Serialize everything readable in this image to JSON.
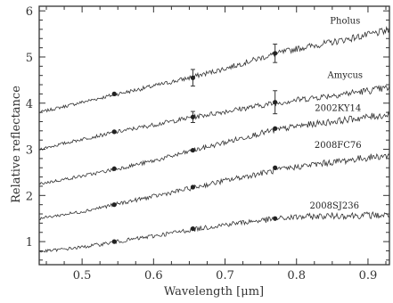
{
  "chart_data": {
    "type": "line",
    "xlabel": "Wavelength [μm]",
    "ylabel": "Relative reflectance",
    "xlim": [
      0.44,
      0.93
    ],
    "ylim": [
      0.5,
      6.1
    ],
    "xticks": [
      "0.5",
      "0.6",
      "0.7",
      "0.8",
      "0.9"
    ],
    "yticks": [
      "1",
      "2",
      "3",
      "4",
      "5",
      "6"
    ],
    "grid": false,
    "legend": "none",
    "series": [
      {
        "name": "Pholus",
        "x": [
          0.44,
          0.5,
          0.55,
          0.6,
          0.65,
          0.7,
          0.75,
          0.8,
          0.85,
          0.9,
          0.93
        ],
        "values": [
          3.8,
          4.02,
          4.2,
          4.37,
          4.55,
          4.75,
          4.98,
          5.18,
          5.32,
          5.48,
          5.58
        ],
        "photometry": {
          "x": [
            0.545,
            0.655,
            0.77
          ],
          "values": [
            4.2,
            4.55,
            5.08
          ],
          "errors": [
            0,
            0.18,
            0.2
          ]
        }
      },
      {
        "name": "Amycus",
        "x": [
          0.44,
          0.5,
          0.55,
          0.6,
          0.65,
          0.7,
          0.75,
          0.8,
          0.85,
          0.9,
          0.93
        ],
        "values": [
          3.0,
          3.22,
          3.38,
          3.53,
          3.68,
          3.82,
          3.95,
          4.07,
          4.17,
          4.27,
          4.33
        ],
        "photometry": {
          "x": [
            0.545,
            0.655,
            0.77
          ],
          "values": [
            3.38,
            3.7,
            4.02
          ],
          "errors": [
            0,
            0.12,
            0.25
          ]
        }
      },
      {
        "name": "2002KY14",
        "x": [
          0.44,
          0.5,
          0.55,
          0.6,
          0.65,
          0.7,
          0.75,
          0.8,
          0.85,
          0.9,
          0.93
        ],
        "values": [
          2.25,
          2.42,
          2.58,
          2.75,
          2.95,
          3.15,
          3.35,
          3.5,
          3.6,
          3.7,
          3.75
        ],
        "photometry": {
          "x": [
            0.545,
            0.655,
            0.77
          ],
          "values": [
            2.58,
            2.98,
            3.45
          ],
          "errors": [
            0,
            0,
            0
          ]
        }
      },
      {
        "name": "2008FC76",
        "x": [
          0.44,
          0.5,
          0.55,
          0.6,
          0.65,
          0.7,
          0.75,
          0.8,
          0.85,
          0.9,
          0.93
        ],
        "values": [
          1.5,
          1.65,
          1.82,
          1.98,
          2.15,
          2.32,
          2.48,
          2.62,
          2.72,
          2.82,
          2.87
        ],
        "photometry": {
          "x": [
            0.545,
            0.655,
            0.77
          ],
          "values": [
            1.8,
            2.18,
            2.6
          ],
          "errors": [
            0,
            0,
            0
          ]
        }
      },
      {
        "name": "2008SJ236",
        "x": [
          0.44,
          0.5,
          0.55,
          0.6,
          0.65,
          0.7,
          0.75,
          0.8,
          0.85,
          0.9,
          0.93
        ],
        "values": [
          0.78,
          0.88,
          1.0,
          1.12,
          1.25,
          1.37,
          1.46,
          1.53,
          1.56,
          1.57,
          1.57
        ],
        "photometry": {
          "x": [
            0.545,
            0.655,
            0.77
          ],
          "values": [
            1.0,
            1.28,
            1.5
          ],
          "errors": [
            0,
            0,
            0
          ]
        }
      }
    ]
  }
}
